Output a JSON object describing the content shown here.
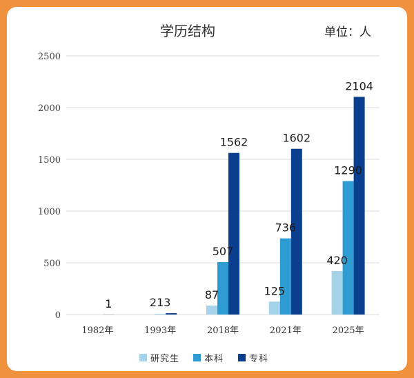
{
  "chart_data": {
    "type": "bar",
    "title": "学历结构",
    "unit_label": "单位：人",
    "categories": [
      "1982年",
      "1993年",
      "2018年",
      "2021年",
      "2025年"
    ],
    "series": [
      {
        "name": "研究生",
        "values": [
          0,
          0,
          87,
          125,
          420
        ],
        "labels": [
          "",
          "",
          "87",
          "125",
          "420"
        ]
      },
      {
        "name": "本科",
        "values": [
          0,
          3,
          507,
          736,
          1290
        ],
        "labels": [
          "",
          "",
          "507",
          "736",
          "1290"
        ]
      },
      {
        "name": "专科",
        "values": [
          1,
          13,
          1562,
          1602,
          2104
        ],
        "labels": [
          "1",
          "",
          "1562",
          "1602",
          "2104"
        ]
      }
    ],
    "extra_labels": [
      {
        "category": "1993年",
        "text": "213"
      }
    ],
    "ylim": [
      0,
      2500
    ],
    "yticks": [
      0,
      500,
      1000,
      1500,
      2000,
      2500
    ],
    "grid": true,
    "legend_position": "bottom"
  },
  "colors": {
    "研究生": "#a4d3ea",
    "本科": "#2f9bd3",
    "专科": "#0a3e8f",
    "grid": "#dedede",
    "frame": "#f0913d"
  }
}
